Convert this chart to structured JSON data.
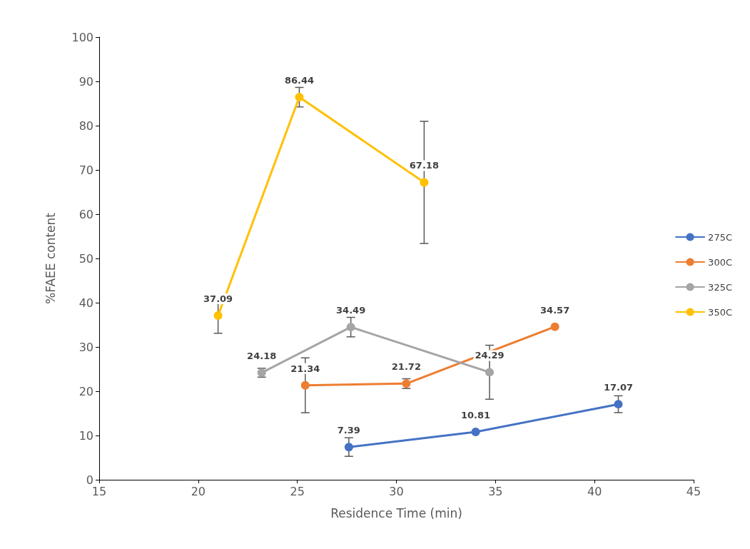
{
  "chart_data": {
    "type": "line",
    "xlabel": "Residence Time (min)",
    "ylabel": "%FAEE content",
    "xlim": [
      15,
      45
    ],
    "xticks": [
      15,
      20,
      25,
      30,
      35,
      40,
      45
    ],
    "ylim": [
      0,
      100
    ],
    "yticks": [
      0,
      10,
      20,
      30,
      40,
      50,
      60,
      70,
      80,
      90,
      100
    ],
    "grid": false,
    "legend": "right",
    "marker": "circle",
    "line_style": "solid",
    "data_labels": true,
    "series": [
      {
        "name": "275C",
        "color": "#4472c4",
        "x": [
          27.6,
          34.0,
          41.2
        ],
        "values": [
          7.39,
          10.81,
          17.07
        ],
        "errors": [
          2.1,
          null,
          1.9
        ]
      },
      {
        "name": "300C",
        "color": "#ed7d31",
        "x": [
          25.4,
          30.5,
          38.0
        ],
        "values": [
          21.34,
          21.72,
          34.57
        ],
        "errors": [
          6.2,
          1.1,
          null
        ]
      },
      {
        "name": "325C",
        "color": "#a5a5a5",
        "x": [
          23.2,
          27.7,
          34.7
        ],
        "values": [
          24.18,
          34.49,
          24.29
        ],
        "errors": [
          1.0,
          2.2,
          6.1
        ]
      },
      {
        "name": "350C",
        "color": "#ffc000",
        "x": [
          21.0,
          25.1,
          31.4
        ],
        "values": [
          37.09,
          86.44,
          67.18
        ],
        "errors": [
          4.0,
          2.2,
          13.8
        ]
      }
    ]
  }
}
